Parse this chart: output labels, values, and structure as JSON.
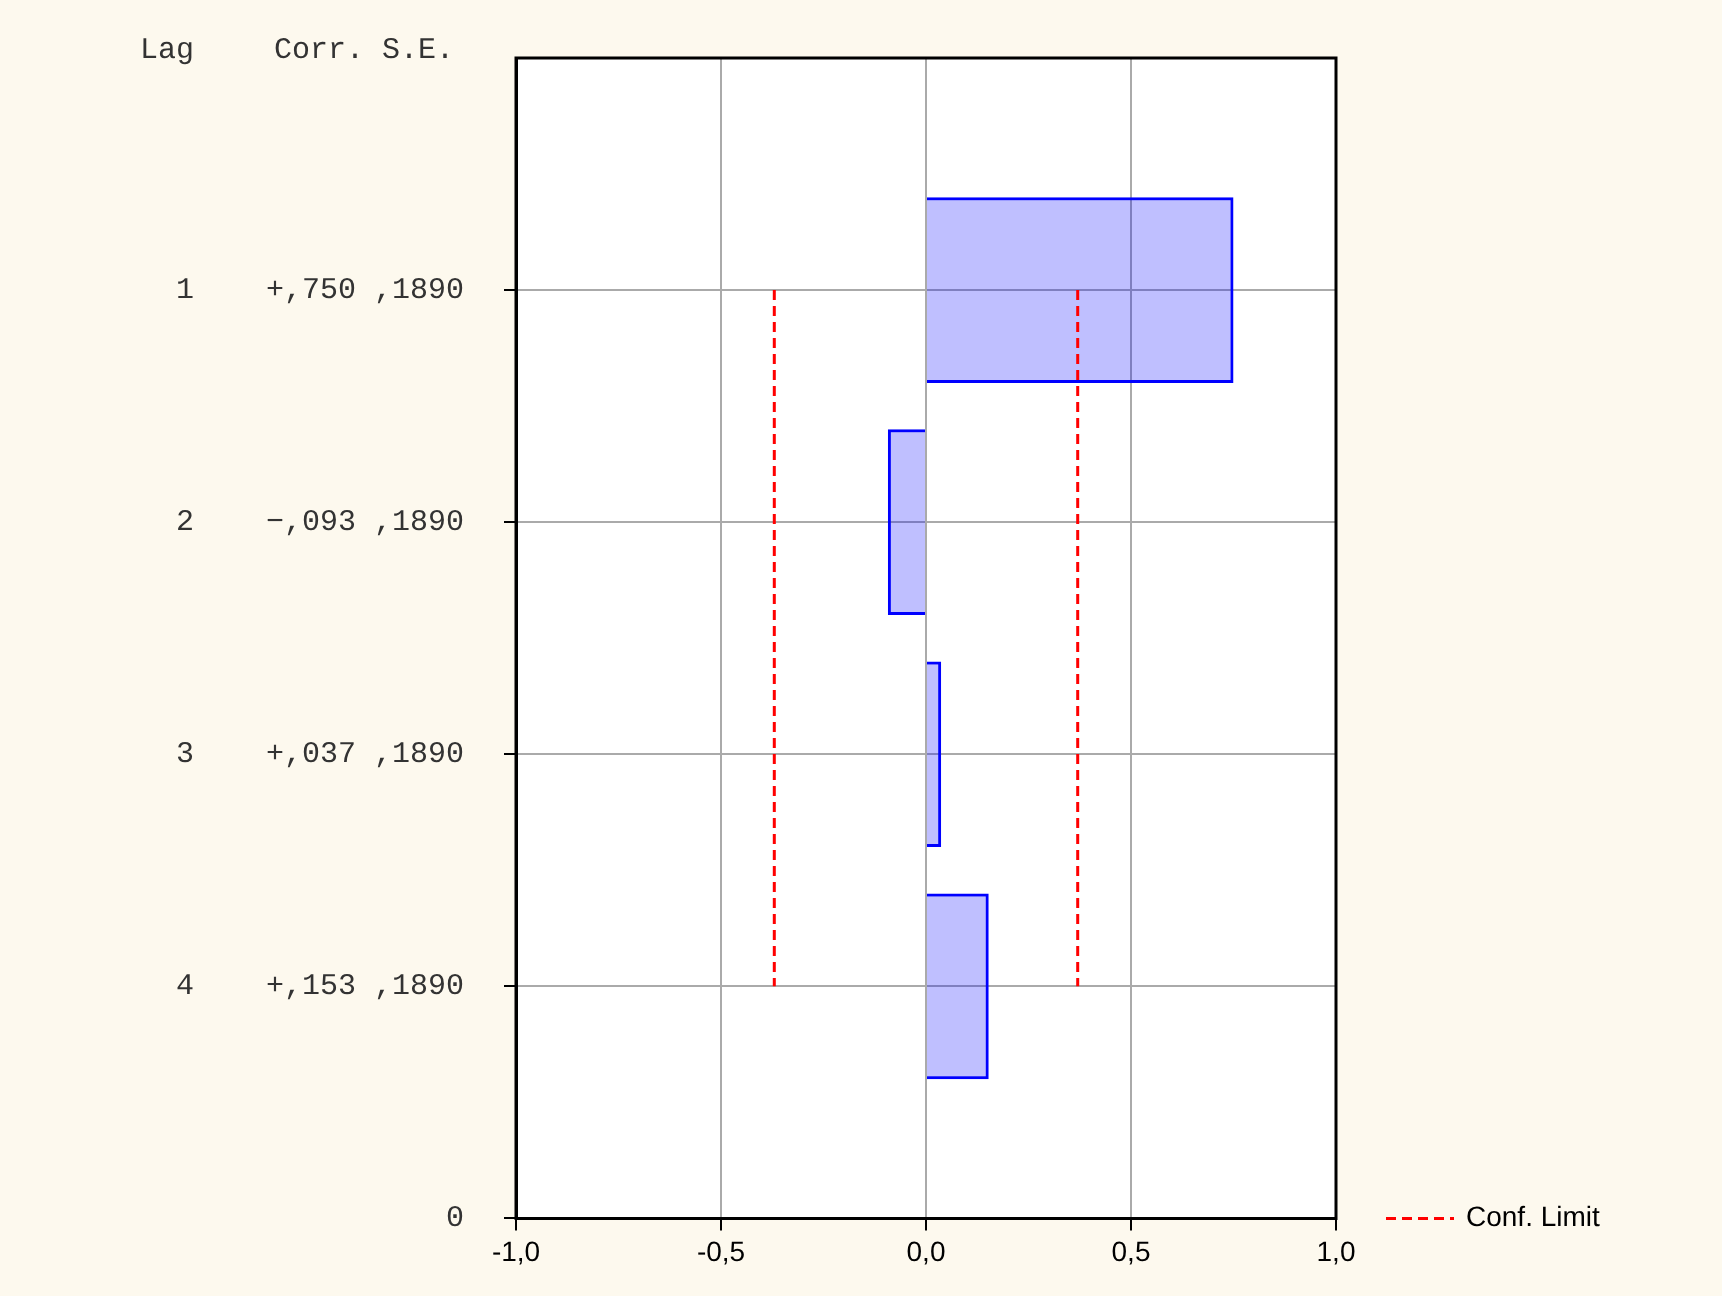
{
  "chart_data": {
    "type": "bar",
    "orientation": "horizontal",
    "annotations": [
      "Lag",
      "Corr. S.E."
    ],
    "categories": [
      "1    +,750 ,1890",
      "2    −,093 ,1890",
      "3    +,037 ,1890",
      "4    +,153 ,1890",
      "0"
    ],
    "series": [
      {
        "color": "#0000ff",
        "values": [
          0.75,
          -0.093,
          0.037,
          0.153,
          null
        ]
      },
      {
        "type": "line",
        "name": "Conf. Limit",
        "color": "#ff0000",
        "line_style": "dashed",
        "marker": "none",
        "values": [
          0.37,
          0.37,
          0.37,
          0.37,
          null
        ]
      },
      {
        "type": "line",
        "color": "#ff0000",
        "line_style": "dashed",
        "marker": "none",
        "values": [
          -0.37,
          -0.37,
          -0.37,
          -0.37,
          null
        ]
      }
    ],
    "xlim": [
      -1,
      1
    ],
    "xticks": [
      {
        "value": -1,
        "label": "-1,0"
      },
      {
        "value": -0.5,
        "label": "-0,5"
      },
      {
        "value": 0,
        "label": "0,0"
      },
      {
        "value": 0.5,
        "label": "0,5"
      },
      {
        "value": 1,
        "label": "1,0"
      }
    ],
    "grid": true,
    "legend": "bottom right"
  }
}
